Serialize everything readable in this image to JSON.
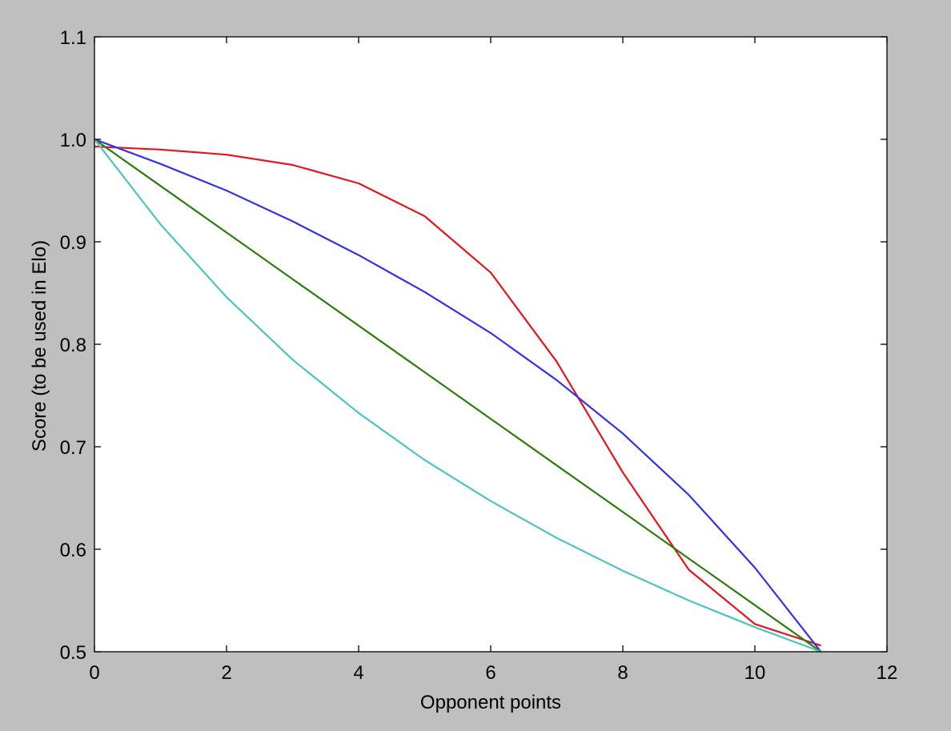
{
  "chart_data": {
    "type": "line",
    "title": "",
    "xlabel": "Opponent points",
    "ylabel": "Score (to be used in Elo)",
    "xlim": [
      0,
      12
    ],
    "ylim": [
      0.5,
      1.1
    ],
    "xticks": [
      0,
      2,
      4,
      6,
      8,
      10,
      12
    ],
    "xtick_labels": [
      "0",
      "2",
      "4",
      "6",
      "8",
      "10",
      "12"
    ],
    "yticks": [
      0.5,
      0.6,
      0.7,
      0.8,
      0.9,
      1.0,
      1.1
    ],
    "ytick_labels": [
      "0.5",
      "0.6",
      "0.7",
      "0.8",
      "0.9",
      "1.0",
      "1.1"
    ],
    "grid": false,
    "legend": "none",
    "x": [
      0,
      1,
      2,
      3,
      4,
      5,
      6,
      7,
      8,
      9,
      10,
      11
    ],
    "series": [
      {
        "color": "#e8141c",
        "values": [
          0.993,
          0.99,
          0.985,
          0.975,
          0.957,
          0.925,
          0.87,
          0.783,
          0.675,
          0.58,
          0.527,
          0.506
        ]
      },
      {
        "color": "#3232f0",
        "values": [
          1.0,
          0.976,
          0.95,
          0.92,
          0.887,
          0.851,
          0.811,
          0.765,
          0.713,
          0.653,
          0.582,
          0.5
        ]
      },
      {
        "color": "#2e7d0a",
        "values": [
          1.0,
          0.9545,
          0.9091,
          0.8636,
          0.8182,
          0.7727,
          0.7273,
          0.6818,
          0.6364,
          0.5909,
          0.5455,
          0.5
        ]
      },
      {
        "color": "#4cc4c4",
        "values": [
          1.0,
          0.917,
          0.846,
          0.785,
          0.733,
          0.687,
          0.647,
          0.611,
          0.579,
          0.55,
          0.524,
          0.5
        ]
      }
    ]
  }
}
